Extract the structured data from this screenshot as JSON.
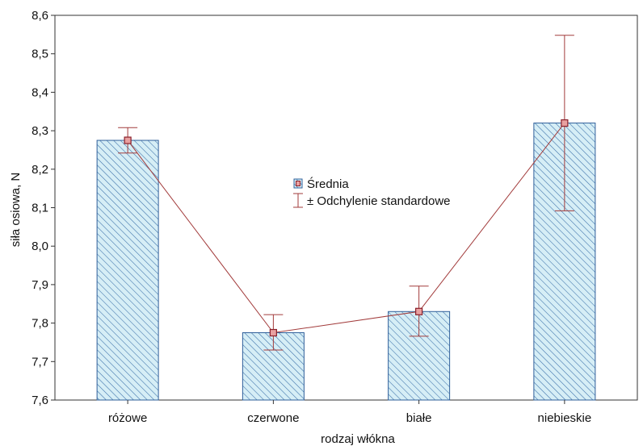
{
  "chart_data": {
    "type": "bar",
    "title": "",
    "xlabel": "rodzaj włókna",
    "ylabel": "siła osiowa, N",
    "ylim": [
      7.6,
      8.6
    ],
    "yticks": [
      "7,6",
      "7,7",
      "7,8",
      "7,9",
      "8,0",
      "8,1",
      "8,2",
      "8,3",
      "8,4",
      "8,5",
      "8,6"
    ],
    "ytick_values": [
      7.6,
      7.7,
      7.8,
      7.9,
      8.0,
      8.1,
      8.2,
      8.3,
      8.4,
      8.5,
      8.6
    ],
    "categories": [
      "różowe",
      "czerwone",
      "białe",
      "niebieskie"
    ],
    "series": [
      {
        "name": "Średnia",
        "values": [
          8.275,
          7.775,
          7.83,
          8.32
        ]
      }
    ],
    "error_bars": {
      "name": "± Odchylenie standardowe",
      "lower": [
        8.242,
        7.73,
        7.766,
        8.092
      ],
      "upper": [
        8.308,
        7.822,
        7.896,
        8.548
      ]
    },
    "grid": false,
    "legend_position": "center",
    "colors": {
      "bar_fill": "#d6eef6",
      "bar_hatch": "#3a6fa8",
      "bar_edge": "#2f5f9a",
      "line": "#a23b3b",
      "marker_fill": "#e8a0a0",
      "marker_edge": "#8a1f2a",
      "axis": "#333333"
    }
  }
}
